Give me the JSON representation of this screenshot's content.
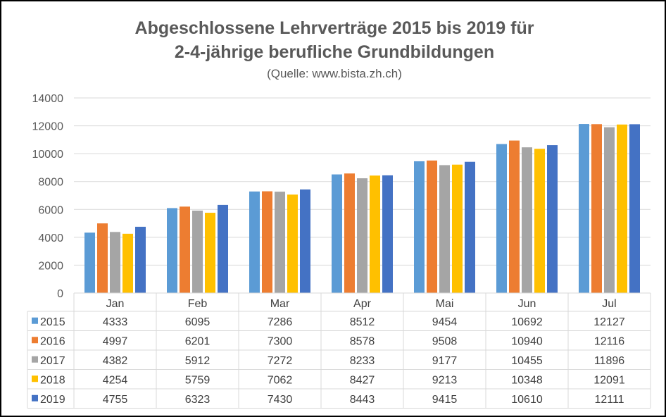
{
  "chart_data": {
    "type": "bar",
    "title_line1": "Abgeschlossene Lehrverträge 2015 bis 2019 für",
    "title_line2": "2-4-jährige berufliche Grundbildungen",
    "subtitle": "(Quelle: www.bista.zh.ch)",
    "xlabel": "",
    "ylabel": "",
    "ylim": [
      0,
      14000
    ],
    "yticks": [
      0,
      2000,
      4000,
      6000,
      8000,
      10000,
      12000,
      14000
    ],
    "grid": true,
    "legend_placement": "data-table-left",
    "categories": [
      "Jan",
      "Feb",
      "Mar",
      "Apr",
      "Mai",
      "Jun",
      "Jul"
    ],
    "series": [
      {
        "name": "2015",
        "color": "#5B9BD5",
        "values": [
          4333,
          6095,
          7286,
          8512,
          9454,
          10692,
          12127
        ]
      },
      {
        "name": "2016",
        "color": "#ED7D31",
        "values": [
          4997,
          6201,
          7300,
          8578,
          9508,
          10940,
          12116
        ]
      },
      {
        "name": "2017",
        "color": "#A5A5A5",
        "values": [
          4382,
          5912,
          7272,
          8233,
          9177,
          10455,
          11896
        ]
      },
      {
        "name": "2018",
        "color": "#FFC000",
        "values": [
          4254,
          5759,
          7062,
          8427,
          9213,
          10348,
          12091
        ]
      },
      {
        "name": "2019",
        "color": "#4472C4",
        "values": [
          4755,
          6323,
          7430,
          8443,
          9415,
          10610,
          12111
        ]
      }
    ]
  }
}
